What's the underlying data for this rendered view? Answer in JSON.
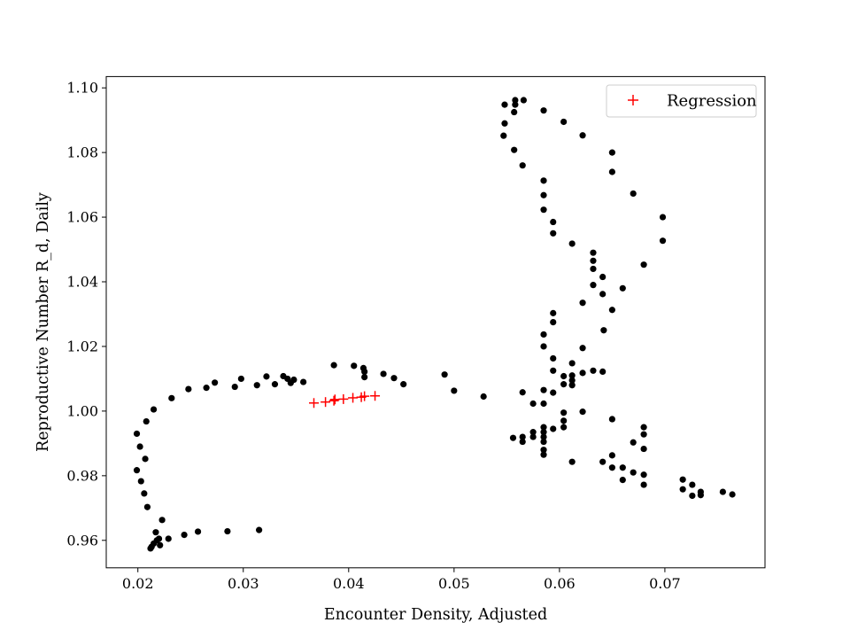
{
  "chart_data": {
    "type": "scatter",
    "xlabel": "Encounter Density, Adjusted",
    "ylabel": "Reproductive Number R_d, Daily",
    "xlim": [
      0.017,
      0.0795
    ],
    "ylim": [
      0.9515,
      1.1035
    ],
    "x_ticks": [
      0.02,
      0.03,
      0.04,
      0.05,
      0.06,
      0.07
    ],
    "x_tick_labels": [
      "0.02",
      "0.03",
      "0.04",
      "0.05",
      "0.06",
      "0.07"
    ],
    "y_ticks": [
      0.96,
      0.98,
      1.0,
      1.02,
      1.04,
      1.06,
      1.08,
      1.1
    ],
    "y_tick_labels": [
      "0.96",
      "0.98",
      "1.00",
      "1.02",
      "1.04",
      "1.06",
      "1.08",
      "1.10"
    ],
    "grid": false,
    "legend_position": "top-right",
    "legend": [
      {
        "label": "Regression",
        "marker": "+",
        "color": "#ff0000"
      }
    ],
    "series": [
      {
        "marker": "dot",
        "color": "#000000",
        "points": [
          [
            0.0212,
            0.9575
          ],
          [
            0.0213,
            0.958
          ],
          [
            0.0215,
            0.959
          ],
          [
            0.0218,
            0.96
          ],
          [
            0.022,
            0.9605
          ],
          [
            0.0221,
            0.9585
          ],
          [
            0.0217,
            0.9625
          ],
          [
            0.0223,
            0.9663
          ],
          [
            0.0229,
            0.9605
          ],
          [
            0.0244,
            0.9617
          ],
          [
            0.0257,
            0.9627
          ],
          [
            0.0285,
            0.9628
          ],
          [
            0.0315,
            0.9632
          ],
          [
            0.0209,
            0.9703
          ],
          [
            0.0206,
            0.9745
          ],
          [
            0.0203,
            0.9783
          ],
          [
            0.0199,
            0.9817
          ],
          [
            0.0207,
            0.9852
          ],
          [
            0.0202,
            0.989
          ],
          [
            0.0199,
            0.993
          ],
          [
            0.0208,
            0.9968
          ],
          [
            0.0215,
            1.0005
          ],
          [
            0.0232,
            1.004
          ],
          [
            0.0248,
            1.0068
          ],
          [
            0.0265,
            1.0072
          ],
          [
            0.0273,
            1.0088
          ],
          [
            0.0292,
            1.0075
          ],
          [
            0.0298,
            1.01
          ],
          [
            0.0313,
            1.008
          ],
          [
            0.0322,
            1.0107
          ],
          [
            0.033,
            1.0083
          ],
          [
            0.0338,
            1.0108
          ],
          [
            0.0342,
            1.01
          ],
          [
            0.0345,
            1.0087
          ],
          [
            0.0348,
            1.0097
          ],
          [
            0.0357,
            1.009
          ],
          [
            0.0386,
            1.0142
          ],
          [
            0.0405,
            1.014
          ],
          [
            0.0414,
            1.0133
          ],
          [
            0.0415,
            1.0122
          ],
          [
            0.0415,
            1.0105
          ],
          [
            0.0433,
            1.0115
          ],
          [
            0.0443,
            1.0102
          ],
          [
            0.0452,
            1.0083
          ],
          [
            0.0491,
            1.0113
          ],
          [
            0.05,
            1.0063
          ],
          [
            0.0528,
            1.0045
          ],
          [
            0.0548,
            1.0948
          ],
          [
            0.0558,
            1.0962
          ],
          [
            0.0566,
            1.0962
          ],
          [
            0.0558,
            1.0948
          ],
          [
            0.0557,
            1.0925
          ],
          [
            0.0548,
            1.089
          ],
          [
            0.0547,
            1.0852
          ],
          [
            0.0557,
            1.0808
          ],
          [
            0.0565,
            1.076
          ],
          [
            0.0585,
            1.093
          ],
          [
            0.0604,
            1.0895
          ],
          [
            0.0622,
            1.0853
          ],
          [
            0.065,
            1.08
          ],
          [
            0.065,
            1.074
          ],
          [
            0.067,
            1.0673
          ],
          [
            0.0698,
            1.06
          ],
          [
            0.0698,
            1.0527
          ],
          [
            0.068,
            1.0453
          ],
          [
            0.066,
            1.038
          ],
          [
            0.065,
            1.0313
          ],
          [
            0.0642,
            1.025
          ],
          [
            0.0585,
            1.0713
          ],
          [
            0.0585,
            1.0668
          ],
          [
            0.0585,
            1.0623
          ],
          [
            0.0594,
            1.0585
          ],
          [
            0.0594,
            1.055
          ],
          [
            0.0612,
            1.0518
          ],
          [
            0.0632,
            1.049
          ],
          [
            0.0632,
            1.0465
          ],
          [
            0.0632,
            1.044
          ],
          [
            0.0641,
            1.0415
          ],
          [
            0.0632,
            1.039
          ],
          [
            0.0641,
            1.0362
          ],
          [
            0.0622,
            1.0335
          ],
          [
            0.0594,
            1.0303
          ],
          [
            0.0594,
            1.0275
          ],
          [
            0.0585,
            1.0237
          ],
          [
            0.0585,
            1.02
          ],
          [
            0.0594,
            1.0163
          ],
          [
            0.0594,
            1.0125
          ],
          [
            0.0604,
            1.0108
          ],
          [
            0.0612,
            1.0148
          ],
          [
            0.0612,
            1.011
          ],
          [
            0.0612,
            1.0095
          ],
          [
            0.0612,
            1.008
          ],
          [
            0.0622,
            1.0118
          ],
          [
            0.0622,
            1.0195
          ],
          [
            0.0632,
            1.0125
          ],
          [
            0.0641,
            1.0122
          ],
          [
            0.0604,
            1.0083
          ],
          [
            0.0594,
            1.0057
          ],
          [
            0.0585,
            1.0065
          ],
          [
            0.0575,
            1.0023
          ],
          [
            0.0585,
            1.0023
          ],
          [
            0.0565,
            1.0058
          ],
          [
            0.0604,
            0.9995
          ],
          [
            0.0622,
            0.9998
          ],
          [
            0.0604,
            0.997
          ],
          [
            0.0604,
            0.995
          ],
          [
            0.0594,
            0.9945
          ],
          [
            0.0585,
            0.995
          ],
          [
            0.0585,
            0.9935
          ],
          [
            0.0585,
            0.992
          ],
          [
            0.0585,
            0.9905
          ],
          [
            0.0585,
            0.988
          ],
          [
            0.0585,
            0.9865
          ],
          [
            0.0575,
            0.9935
          ],
          [
            0.0575,
            0.992
          ],
          [
            0.0565,
            0.992
          ],
          [
            0.0565,
            0.9905
          ],
          [
            0.0556,
            0.9917
          ],
          [
            0.0612,
            0.9843
          ],
          [
            0.0641,
            0.9843
          ],
          [
            0.065,
            0.9975
          ],
          [
            0.065,
            0.9863
          ],
          [
            0.065,
            0.9825
          ],
          [
            0.066,
            0.9825
          ],
          [
            0.066,
            0.9787
          ],
          [
            0.067,
            0.981
          ],
          [
            0.067,
            0.9903
          ],
          [
            0.068,
            0.995
          ],
          [
            0.068,
            0.9928
          ],
          [
            0.068,
            0.9883
          ],
          [
            0.068,
            0.9803
          ],
          [
            0.068,
            0.9772
          ],
          [
            0.0717,
            0.9788
          ],
          [
            0.0717,
            0.9758
          ],
          [
            0.0726,
            0.9772
          ],
          [
            0.0726,
            0.9738
          ],
          [
            0.0734,
            0.975
          ],
          [
            0.0734,
            0.974
          ],
          [
            0.0755,
            0.975
          ],
          [
            0.0764,
            0.9742
          ]
        ]
      },
      {
        "name": "Regression",
        "marker": "+",
        "color": "#ff0000",
        "points": [
          [
            0.0367,
            1.0025
          ],
          [
            0.0378,
            1.0028
          ],
          [
            0.0386,
            1.0032
          ],
          [
            0.0387,
            1.0036
          ],
          [
            0.0395,
            1.0037
          ],
          [
            0.0404,
            1.0041
          ],
          [
            0.0412,
            1.0043
          ],
          [
            0.0415,
            1.0046
          ],
          [
            0.0425,
            1.0047
          ]
        ]
      }
    ]
  }
}
